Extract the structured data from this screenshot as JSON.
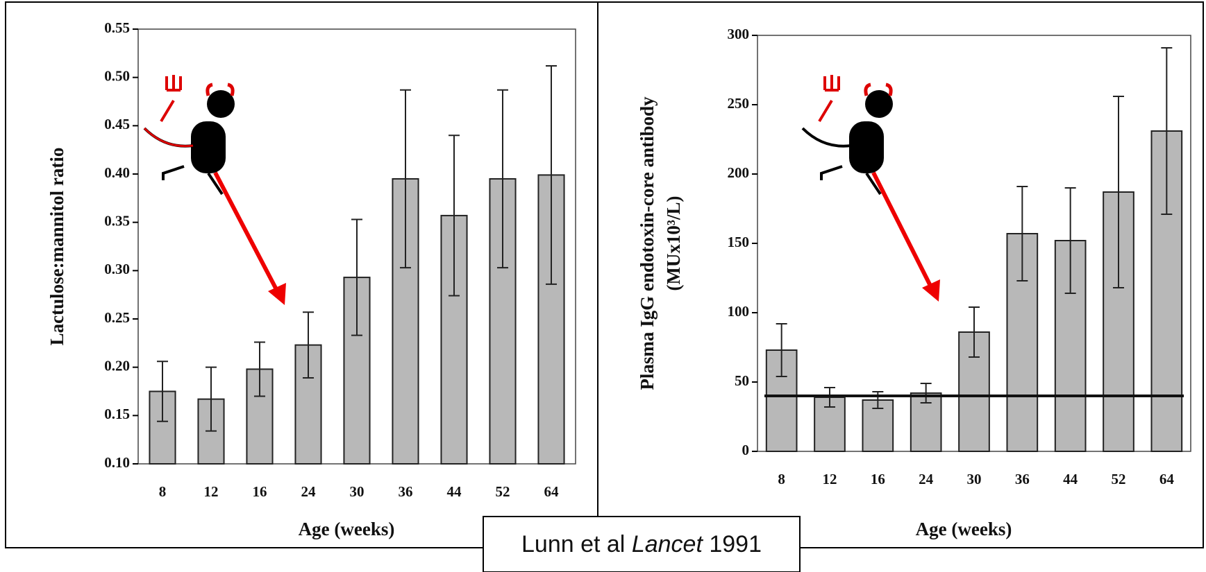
{
  "chart_data": [
    {
      "type": "bar",
      "categories": [
        "8",
        "12",
        "16",
        "24",
        "30",
        "36",
        "44",
        "52",
        "64"
      ],
      "values": [
        0.175,
        0.167,
        0.198,
        0.223,
        0.293,
        0.395,
        0.357,
        0.395,
        0.399
      ],
      "errors": [
        0.031,
        0.033,
        0.028,
        0.034,
        0.06,
        0.092,
        0.083,
        0.092,
        0.113
      ],
      "color": "#b8b8b8",
      "ylim": [
        0.1,
        0.55
      ],
      "yticks": [
        {
          "value": 0.1,
          "label": "0.10"
        },
        {
          "value": 0.15,
          "label": "0.15"
        },
        {
          "value": 0.2,
          "label": "0.20"
        },
        {
          "value": 0.25,
          "label": "0.25"
        },
        {
          "value": 0.3,
          "label": "0.30"
        },
        {
          "value": 0.35,
          "label": "0.35"
        },
        {
          "value": 0.4,
          "label": "0.40"
        },
        {
          "value": 0.45,
          "label": "0.45"
        },
        {
          "value": 0.5,
          "label": "0.50"
        },
        {
          "value": 0.55,
          "label": "0.55"
        }
      ],
      "ylabel": "Lactulose:mannitol ratio",
      "xlabel": "Age (weeks)"
    },
    {
      "type": "bar",
      "categories": [
        "8",
        "12",
        "16",
        "24",
        "30",
        "36",
        "44",
        "52",
        "64"
      ],
      "values": [
        73,
        39,
        37,
        42,
        86,
        157,
        152,
        187,
        231
      ],
      "errors": [
        19,
        7,
        6,
        7,
        18,
        34,
        38,
        69,
        60
      ],
      "color": "#b8b8b8",
      "ylim": [
        0,
        300
      ],
      "yticks": [
        0,
        50,
        100,
        150,
        200,
        250,
        300
      ],
      "hline": 40,
      "ylabel": [
        "Plasma IgG endotoxin-core antibody",
        "(MUx10³/L)"
      ],
      "xlabel": "Age (weeks)"
    }
  ],
  "citation": {
    "authors": "Lunn et al",
    "journal": "Lancet",
    "year": "1991"
  }
}
